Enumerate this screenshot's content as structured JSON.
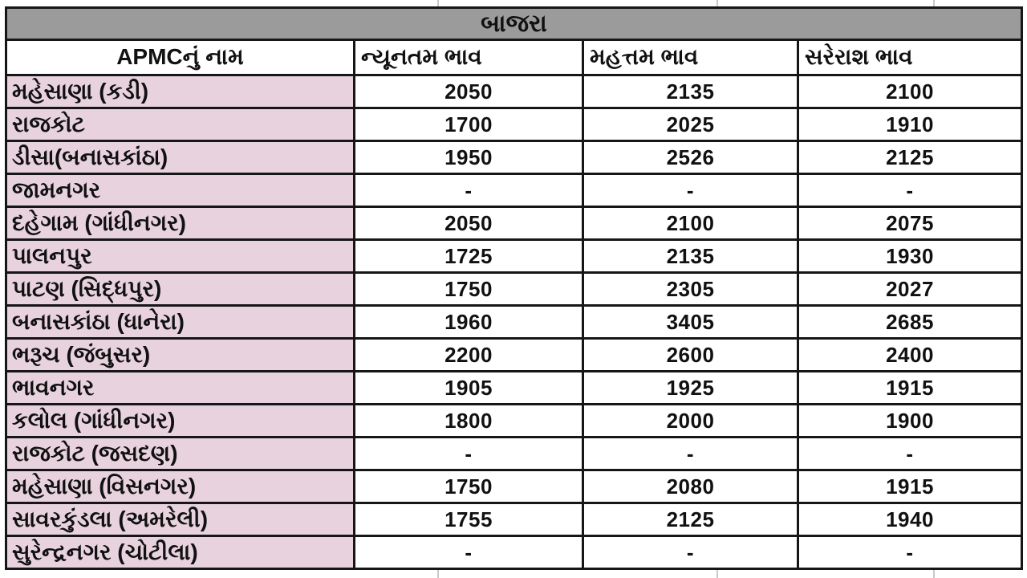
{
  "title": "બાજરા",
  "table": {
    "columns": [
      "APMCનું નામ",
      "ન્યૂનતમ ભાવ",
      "મહત્તમ ભાવ",
      "સરેરાશ ભાવ"
    ],
    "rows": [
      {
        "name": "મહેસાણા (કડી)",
        "min": "2050",
        "max": "2135",
        "avg": "2100"
      },
      {
        "name": "રાજકોટ",
        "min": "1700",
        "max": "2025",
        "avg": "1910"
      },
      {
        "name": "ડીસા(બનાસકાંઠા)",
        "min": "1950",
        "max": "2526",
        "avg": "2125"
      },
      {
        "name": "જામનગર",
        "min": "-",
        "max": "-",
        "avg": "-"
      },
      {
        "name": "દહેગામ (ગાંધીનગર)",
        "min": "2050",
        "max": "2100",
        "avg": "2075"
      },
      {
        "name": "પાલનપુર",
        "min": "1725",
        "max": "2135",
        "avg": "1930"
      },
      {
        "name": "પાટણ (સિદ્ધપુર)",
        "min": "1750",
        "max": "2305",
        "avg": "2027"
      },
      {
        "name": "બનાસકાંઠા (ધાનેરા)",
        "min": "1960",
        "max": "3405",
        "avg": "2685"
      },
      {
        "name": "ભરૂચ (જંબુસર)",
        "min": "2200",
        "max": "2600",
        "avg": "2400"
      },
      {
        "name": "ભાવનગર",
        "min": "1905",
        "max": "1925",
        "avg": "1915"
      },
      {
        "name": "કલોલ (ગાંધીનગર)",
        "min": "1800",
        "max": "2000",
        "avg": "1900"
      },
      {
        "name": "રાજકોટ (જસદણ)",
        "min": "-",
        "max": "-",
        "avg": "-"
      },
      {
        "name": "મહેસાણા (વિસનગર)",
        "min": "1750",
        "max": "2080",
        "avg": "1915"
      },
      {
        "name": "સાવરકુંડલા (અમરેલી)",
        "min": "1755",
        "max": "2125",
        "avg": "1940"
      },
      {
        "name": "સુરેન્દ્રનગર (ચોટીલા)",
        "min": "-",
        "max": "-",
        "avg": "-"
      }
    ]
  },
  "colors": {
    "title_bg": "#9b9b9b",
    "name_col_bg": "#e8d2de",
    "border_color": "#161616",
    "text_color": "#111111",
    "page_bg": "#ffffff"
  },
  "chart_data": {
    "type": "table",
    "title": "બાજરા",
    "columns": [
      "APMCનું નામ",
      "ન્યૂનતમ ભાવ",
      "મહત્તમ ભાવ",
      "સરેરાશ ભાવ"
    ],
    "rows": [
      [
        "મહેસાણા (કડી)",
        2050,
        2135,
        2100
      ],
      [
        "રાજકોટ",
        1700,
        2025,
        1910
      ],
      [
        "ડીસા(બનાસકાંઠા)",
        1950,
        2526,
        2125
      ],
      [
        "જામનગર",
        null,
        null,
        null
      ],
      [
        "દહેગામ (ગાંધીનગર)",
        2050,
        2100,
        2075
      ],
      [
        "પાલનપુર",
        1725,
        2135,
        1930
      ],
      [
        "પાટણ (સિદ્ધપુર)",
        1750,
        2305,
        2027
      ],
      [
        "બનાસકાંઠા (ધાનેરા)",
        1960,
        3405,
        2685
      ],
      [
        "ભરૂચ (જંબુસર)",
        2200,
        2600,
        2400
      ],
      [
        "ભાવનગર",
        1905,
        1925,
        1915
      ],
      [
        "કલોલ (ગાંધીનગર)",
        1800,
        2000,
        1900
      ],
      [
        "રાજકોટ (જસદણ)",
        null,
        null,
        null
      ],
      [
        "મહેસાણા (વિસનગર)",
        1750,
        2080,
        1915
      ],
      [
        "સાવરકુંડલા (અમરેલી)",
        1755,
        2125,
        1940
      ],
      [
        "સુરેન્દ્રનગર (ચોટીલા)",
        null,
        null,
        null
      ]
    ],
    "missing_value_marker": "-"
  }
}
